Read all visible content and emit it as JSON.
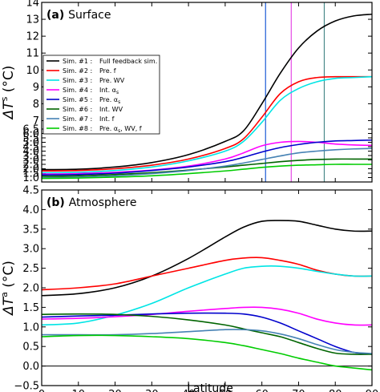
{
  "chart_data": [
    {
      "type": "line",
      "panel_label": "(a)",
      "panel_title": "Surface",
      "ylabel_main": "ΔT",
      "ylabel_sup": "s",
      "ylabel_unit": "(°C)",
      "xlim": [
        0,
        90
      ],
      "ylim": [
        0.5,
        14
      ],
      "x_ticks": [
        0,
        10,
        20,
        30,
        40,
        50,
        60,
        70,
        80,
        90
      ],
      "y_ticks": [
        1.0,
        1.5,
        2.0,
        2.5,
        3.0,
        3.5,
        4.0,
        4.5,
        5.0,
        5.5,
        6.0,
        6.5,
        7,
        8,
        9,
        10,
        11,
        12,
        13,
        14
      ],
      "y_tick_labels": [
        "1.0",
        "1.5",
        "2.0",
        "2.5",
        "3.0",
        "3.5",
        "4.0",
        "4.5",
        "5.0",
        "5.5",
        "6.0",
        "6.5",
        "7",
        "8",
        "9",
        "10",
        "11",
        "12",
        "13",
        "14"
      ],
      "y_scale": "piecewise linear: 0.5 to 6.5 compressed, 6.5 to 14 expanded",
      "legend_position": "left",
      "vertical_lines": [
        {
          "x": 61,
          "color": "#1a5ad6"
        },
        {
          "x": 68,
          "color": "#e64ae6"
        },
        {
          "x": 77,
          "color": "#4a8a8a"
        }
      ],
      "series": [
        {
          "label_sim": "Sim. #1 :",
          "label_desc": "Full feedback sim.",
          "color": "#000000",
          "x": [
            0,
            10,
            20,
            30,
            40,
            50,
            55,
            60,
            65,
            70,
            75,
            80,
            85,
            90
          ],
          "y": [
            1.9,
            1.95,
            2.2,
            2.7,
            3.6,
            5.1,
            6.3,
            8.0,
            9.8,
            11.3,
            12.3,
            12.9,
            13.2,
            13.3
          ]
        },
        {
          "label_sim": "Sim. #2 :",
          "label_desc": "Pre. f",
          "color": "#ff0000",
          "x": [
            0,
            10,
            20,
            30,
            40,
            50,
            55,
            60,
            65,
            70,
            75,
            80,
            85,
            90
          ],
          "y": [
            1.75,
            1.8,
            2.0,
            2.4,
            3.1,
            4.3,
            5.4,
            7.2,
            8.6,
            9.3,
            9.55,
            9.6,
            9.6,
            9.6
          ]
        },
        {
          "label_sim": "Sim. #3 :",
          "label_desc": "Pre. WV",
          "color": "#00e5e5",
          "x": [
            0,
            10,
            20,
            30,
            40,
            50,
            55,
            60,
            65,
            70,
            75,
            80,
            85,
            90
          ],
          "y": [
            1.55,
            1.6,
            1.8,
            2.2,
            2.9,
            4.0,
            5.1,
            6.9,
            8.2,
            8.9,
            9.3,
            9.5,
            9.55,
            9.6
          ]
        },
        {
          "label_sim": "Sim. #4 :",
          "label_desc": "Int. α",
          "label_sub": "s",
          "color": "#ff00ff",
          "x": [
            0,
            10,
            20,
            30,
            40,
            50,
            55,
            60,
            65,
            70,
            75,
            80,
            85,
            90
          ],
          "y": [
            1.4,
            1.45,
            1.6,
            1.85,
            2.3,
            3.1,
            3.8,
            4.6,
            5.0,
            5.1,
            5.0,
            4.8,
            4.7,
            4.65
          ]
        },
        {
          "label_sim": "Sim. #5 :",
          "label_desc": "Pre. α",
          "label_sub": "s",
          "color": "#0000cc",
          "x": [
            0,
            10,
            20,
            30,
            40,
            50,
            55,
            60,
            65,
            70,
            75,
            80,
            85,
            90
          ],
          "y": [
            1.3,
            1.35,
            1.5,
            1.8,
            2.2,
            2.8,
            3.3,
            3.9,
            4.4,
            4.75,
            5.0,
            5.15,
            5.2,
            5.25
          ]
        },
        {
          "label_sim": "Sim. #6 :",
          "label_desc": "Int. WV",
          "color": "#006400",
          "x": [
            0,
            10,
            20,
            30,
            40,
            50,
            55,
            60,
            65,
            70,
            75,
            80,
            85,
            90
          ],
          "y": [
            1.15,
            1.2,
            1.35,
            1.55,
            1.85,
            2.2,
            2.4,
            2.6,
            2.8,
            2.95,
            3.05,
            3.1,
            3.1,
            3.1
          ]
        },
        {
          "label_sim": "Sim. #7 :",
          "label_desc": "Int. f",
          "color": "#4682b4",
          "x": [
            0,
            10,
            20,
            30,
            40,
            50,
            55,
            60,
            65,
            70,
            75,
            80,
            85,
            90
          ],
          "y": [
            1.0,
            1.05,
            1.2,
            1.45,
            1.8,
            2.3,
            2.65,
            3.05,
            3.45,
            3.8,
            4.0,
            4.15,
            4.25,
            4.3
          ]
        },
        {
          "label_sim": "Sim. #8 :",
          "label_desc": "Pre. α",
          "label_sub": "s",
          "label_tail": ", WV, f",
          "color": "#00cc00",
          "x": [
            0,
            10,
            20,
            30,
            40,
            50,
            55,
            60,
            65,
            70,
            75,
            80,
            85,
            90
          ],
          "y": [
            0.9,
            0.95,
            1.05,
            1.2,
            1.45,
            1.75,
            1.95,
            2.15,
            2.3,
            2.4,
            2.45,
            2.5,
            2.5,
            2.5
          ]
        }
      ]
    },
    {
      "type": "line",
      "panel_label": "(b)",
      "panel_title": "Atmosphere",
      "ylabel_main": "ΔT",
      "ylabel_sup": "a",
      "ylabel_unit": "(°C)",
      "xlabel": "Latitude",
      "xlim": [
        0,
        90
      ],
      "ylim": [
        -0.5,
        4.5
      ],
      "x_ticks": [
        0,
        10,
        20,
        30,
        40,
        50,
        60,
        70,
        80,
        90
      ],
      "y_ticks": [
        -0.5,
        0.0,
        0.5,
        1.0,
        1.5,
        2.0,
        2.5,
        3.0,
        3.5,
        4.0,
        4.5
      ],
      "y_tick_labels": [
        "−0.5",
        "0.0",
        "0.5",
        "1.0",
        "1.5",
        "2.0",
        "2.5",
        "3.0",
        "3.5",
        "4.0",
        "4.5"
      ],
      "series": [
        {
          "color": "#000000",
          "x": [
            0,
            10,
            20,
            30,
            40,
            50,
            55,
            60,
            65,
            70,
            75,
            80,
            85,
            90
          ],
          "y": [
            1.8,
            1.85,
            2.0,
            2.3,
            2.75,
            3.3,
            3.55,
            3.7,
            3.72,
            3.7,
            3.6,
            3.5,
            3.45,
            3.45
          ]
        },
        {
          "color": "#ff0000",
          "x": [
            0,
            10,
            20,
            30,
            40,
            50,
            55,
            60,
            65,
            70,
            75,
            80,
            85,
            90
          ],
          "y": [
            1.95,
            2.0,
            2.1,
            2.3,
            2.5,
            2.7,
            2.76,
            2.77,
            2.7,
            2.6,
            2.45,
            2.35,
            2.3,
            2.3
          ]
        },
        {
          "color": "#00e5e5",
          "x": [
            0,
            10,
            20,
            30,
            40,
            50,
            55,
            60,
            65,
            70,
            75,
            80,
            85,
            90
          ],
          "y": [
            1.05,
            1.1,
            1.3,
            1.6,
            2.0,
            2.35,
            2.5,
            2.55,
            2.55,
            2.5,
            2.42,
            2.35,
            2.3,
            2.3
          ]
        },
        {
          "color": "#ff00ff",
          "x": [
            0,
            10,
            20,
            30,
            40,
            50,
            55,
            60,
            65,
            70,
            75,
            80,
            85,
            90
          ],
          "y": [
            1.2,
            1.22,
            1.26,
            1.32,
            1.4,
            1.47,
            1.5,
            1.5,
            1.45,
            1.35,
            1.2,
            1.1,
            1.05,
            1.05
          ]
        },
        {
          "color": "#0000cc",
          "x": [
            0,
            10,
            20,
            30,
            40,
            50,
            55,
            60,
            65,
            70,
            75,
            80,
            85,
            90
          ],
          "y": [
            1.25,
            1.28,
            1.3,
            1.33,
            1.35,
            1.35,
            1.33,
            1.25,
            1.1,
            0.9,
            0.7,
            0.5,
            0.35,
            0.3
          ]
        },
        {
          "color": "#006400",
          "x": [
            0,
            10,
            20,
            30,
            40,
            50,
            55,
            60,
            65,
            70,
            75,
            80,
            85,
            90
          ],
          "y": [
            1.32,
            1.33,
            1.32,
            1.27,
            1.18,
            1.05,
            0.95,
            0.85,
            0.75,
            0.6,
            0.45,
            0.33,
            0.3,
            0.3
          ]
        },
        {
          "color": "#4682b4",
          "x": [
            0,
            10,
            20,
            30,
            40,
            50,
            55,
            60,
            65,
            70,
            75,
            80,
            85,
            90
          ],
          "y": [
            0.8,
            0.8,
            0.8,
            0.83,
            0.88,
            0.93,
            0.93,
            0.9,
            0.82,
            0.7,
            0.55,
            0.42,
            0.35,
            0.32
          ]
        },
        {
          "color": "#00cc00",
          "x": [
            0,
            10,
            20,
            30,
            40,
            50,
            55,
            60,
            65,
            70,
            75,
            80,
            85,
            90
          ],
          "y": [
            0.75,
            0.78,
            0.78,
            0.75,
            0.7,
            0.6,
            0.52,
            0.42,
            0.32,
            0.2,
            0.1,
            0.0,
            -0.05,
            -0.1
          ]
        }
      ]
    }
  ]
}
